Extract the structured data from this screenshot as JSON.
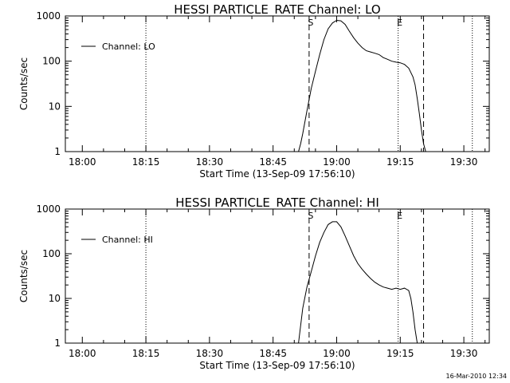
{
  "chart_data": [
    {
      "type": "line",
      "title": "HESSI PARTICLE_RATE Channel: LO",
      "xlabel": "Start Time (13-Sep-09 17:56:10)",
      "ylabel": "Counts/sec",
      "yscale": "log",
      "xlim": [
        "17:56",
        "19:36"
      ],
      "ylim": [
        1,
        1000
      ],
      "x_ticks": [
        "18:00",
        "18:15",
        "18:30",
        "18:45",
        "19:00",
        "19:15",
        "19:30"
      ],
      "y_ticks": [
        "1",
        "10",
        "100",
        "1000"
      ],
      "legend": "top-left",
      "grid": false,
      "series": [
        {
          "name": "Channel: LO",
          "x": [
            "18:51",
            "18:51.5",
            "18:52",
            "18:53",
            "18:54",
            "18:55",
            "18:56",
            "18:57",
            "18:58",
            "18:59",
            "19:00",
            "19:01",
            "19:02",
            "19:03",
            "19:04",
            "19:05",
            "19:06",
            "19:07",
            "19:08",
            "19:09",
            "19:10",
            "19:11",
            "19:12",
            "19:13",
            "19:14",
            "19:15",
            "19:16",
            "19:17",
            "19:18",
            "19:18.5",
            "19:19",
            "19:19.5",
            "19:20",
            "19:20.5",
            "19:21"
          ],
          "y": [
            1,
            1.5,
            2.5,
            8,
            25,
            60,
            140,
            300,
            520,
            700,
            800,
            780,
            650,
            460,
            330,
            250,
            200,
            170,
            160,
            150,
            140,
            120,
            110,
            100,
            95,
            92,
            85,
            70,
            45,
            30,
            15,
            7,
            3,
            1.5,
            1
          ]
        }
      ],
      "vertical_markers": {
        "dotted": [
          "18:15",
          "19:14.5",
          "19:32"
        ],
        "dashed": [
          "18:53.5",
          "19:20.5"
        ],
        "labels": [
          {
            "text": "S",
            "at": "18:53.5"
          },
          {
            "text": "E",
            "at": "19:14.5"
          }
        ]
      }
    },
    {
      "type": "line",
      "title": "HESSI PARTICLE_RATE Channel: HI",
      "xlabel": "Start Time (13-Sep-09 17:56:10)",
      "ylabel": "Counts/sec",
      "yscale": "log",
      "xlim": [
        "17:56",
        "19:36"
      ],
      "ylim": [
        1,
        1000
      ],
      "x_ticks": [
        "18:00",
        "18:15",
        "18:30",
        "18:45",
        "19:00",
        "19:15",
        "19:30"
      ],
      "y_ticks": [
        "1",
        "10",
        "100",
        "1000"
      ],
      "legend": "top-left",
      "grid": false,
      "series": [
        {
          "name": "Channel: HI",
          "x": [
            "18:51",
            "18:52",
            "18:53",
            "18:54",
            "18:55",
            "18:56",
            "18:57",
            "18:58",
            "18:59",
            "19:00",
            "19:01",
            "19:02",
            "19:03",
            "19:04",
            "19:05",
            "19:06",
            "19:07",
            "19:08",
            "19:09",
            "19:10",
            "19:11",
            "19:12",
            "19:13",
            "19:14",
            "19:15",
            "19:16",
            "19:17",
            "19:17.5",
            "19:18",
            "19:18.5",
            "19:19"
          ],
          "y": [
            1,
            6,
            18,
            40,
            90,
            180,
            300,
            450,
            520,
            520,
            400,
            250,
            150,
            90,
            60,
            45,
            35,
            28,
            23,
            20,
            18,
            17,
            16,
            17,
            16,
            17,
            15,
            10,
            5,
            2,
            1
          ]
        }
      ],
      "vertical_markers": {
        "dotted": [
          "18:15",
          "19:14.5",
          "19:32"
        ],
        "dashed": [
          "18:53.5",
          "19:20.5"
        ],
        "labels": [
          {
            "text": "S",
            "at": "18:53.5"
          },
          {
            "text": "E",
            "at": "19:14.5"
          }
        ]
      }
    }
  ],
  "footer": {
    "timestamp": "16-Mar-2010 12:34"
  }
}
